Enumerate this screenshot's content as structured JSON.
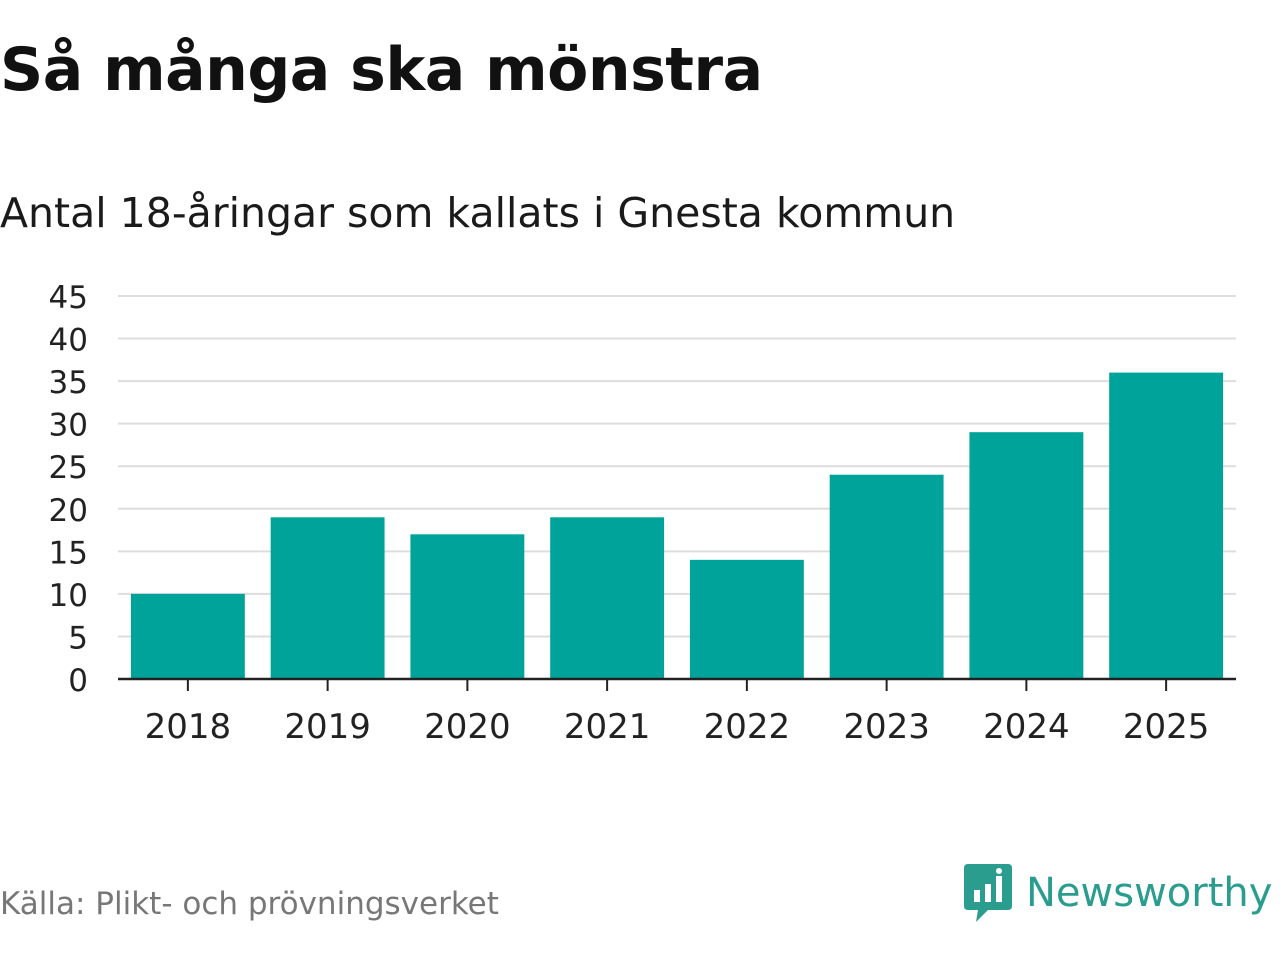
{
  "header": {
    "title": "Så många ska mönstra",
    "subtitle": "Antal 18-åringar som kallats i Gnesta kommun"
  },
  "footer": {
    "source": "Källa: Plikt- och prövningsverket",
    "brand": "Newsworthy",
    "brand_icon": "newsworthy-logo-icon"
  },
  "colors": {
    "bar": "#00a39a",
    "grid": "#dddddd",
    "axis": "#222222",
    "brand": "#2a9d8f"
  },
  "chart_data": {
    "type": "bar",
    "categories": [
      "2018",
      "2019",
      "2020",
      "2021",
      "2022",
      "2023",
      "2024",
      "2025"
    ],
    "values": [
      10,
      19,
      17,
      19,
      14,
      24,
      29,
      36
    ],
    "title": "Så många ska mönstra",
    "subtitle": "Antal 18-åringar som kallats i Gnesta kommun",
    "xlabel": "",
    "ylabel": "",
    "ylim": [
      0,
      45
    ],
    "yticks": [
      0,
      5,
      10,
      15,
      20,
      25,
      30,
      35,
      40,
      45
    ],
    "grid": true,
    "legend": "none"
  }
}
